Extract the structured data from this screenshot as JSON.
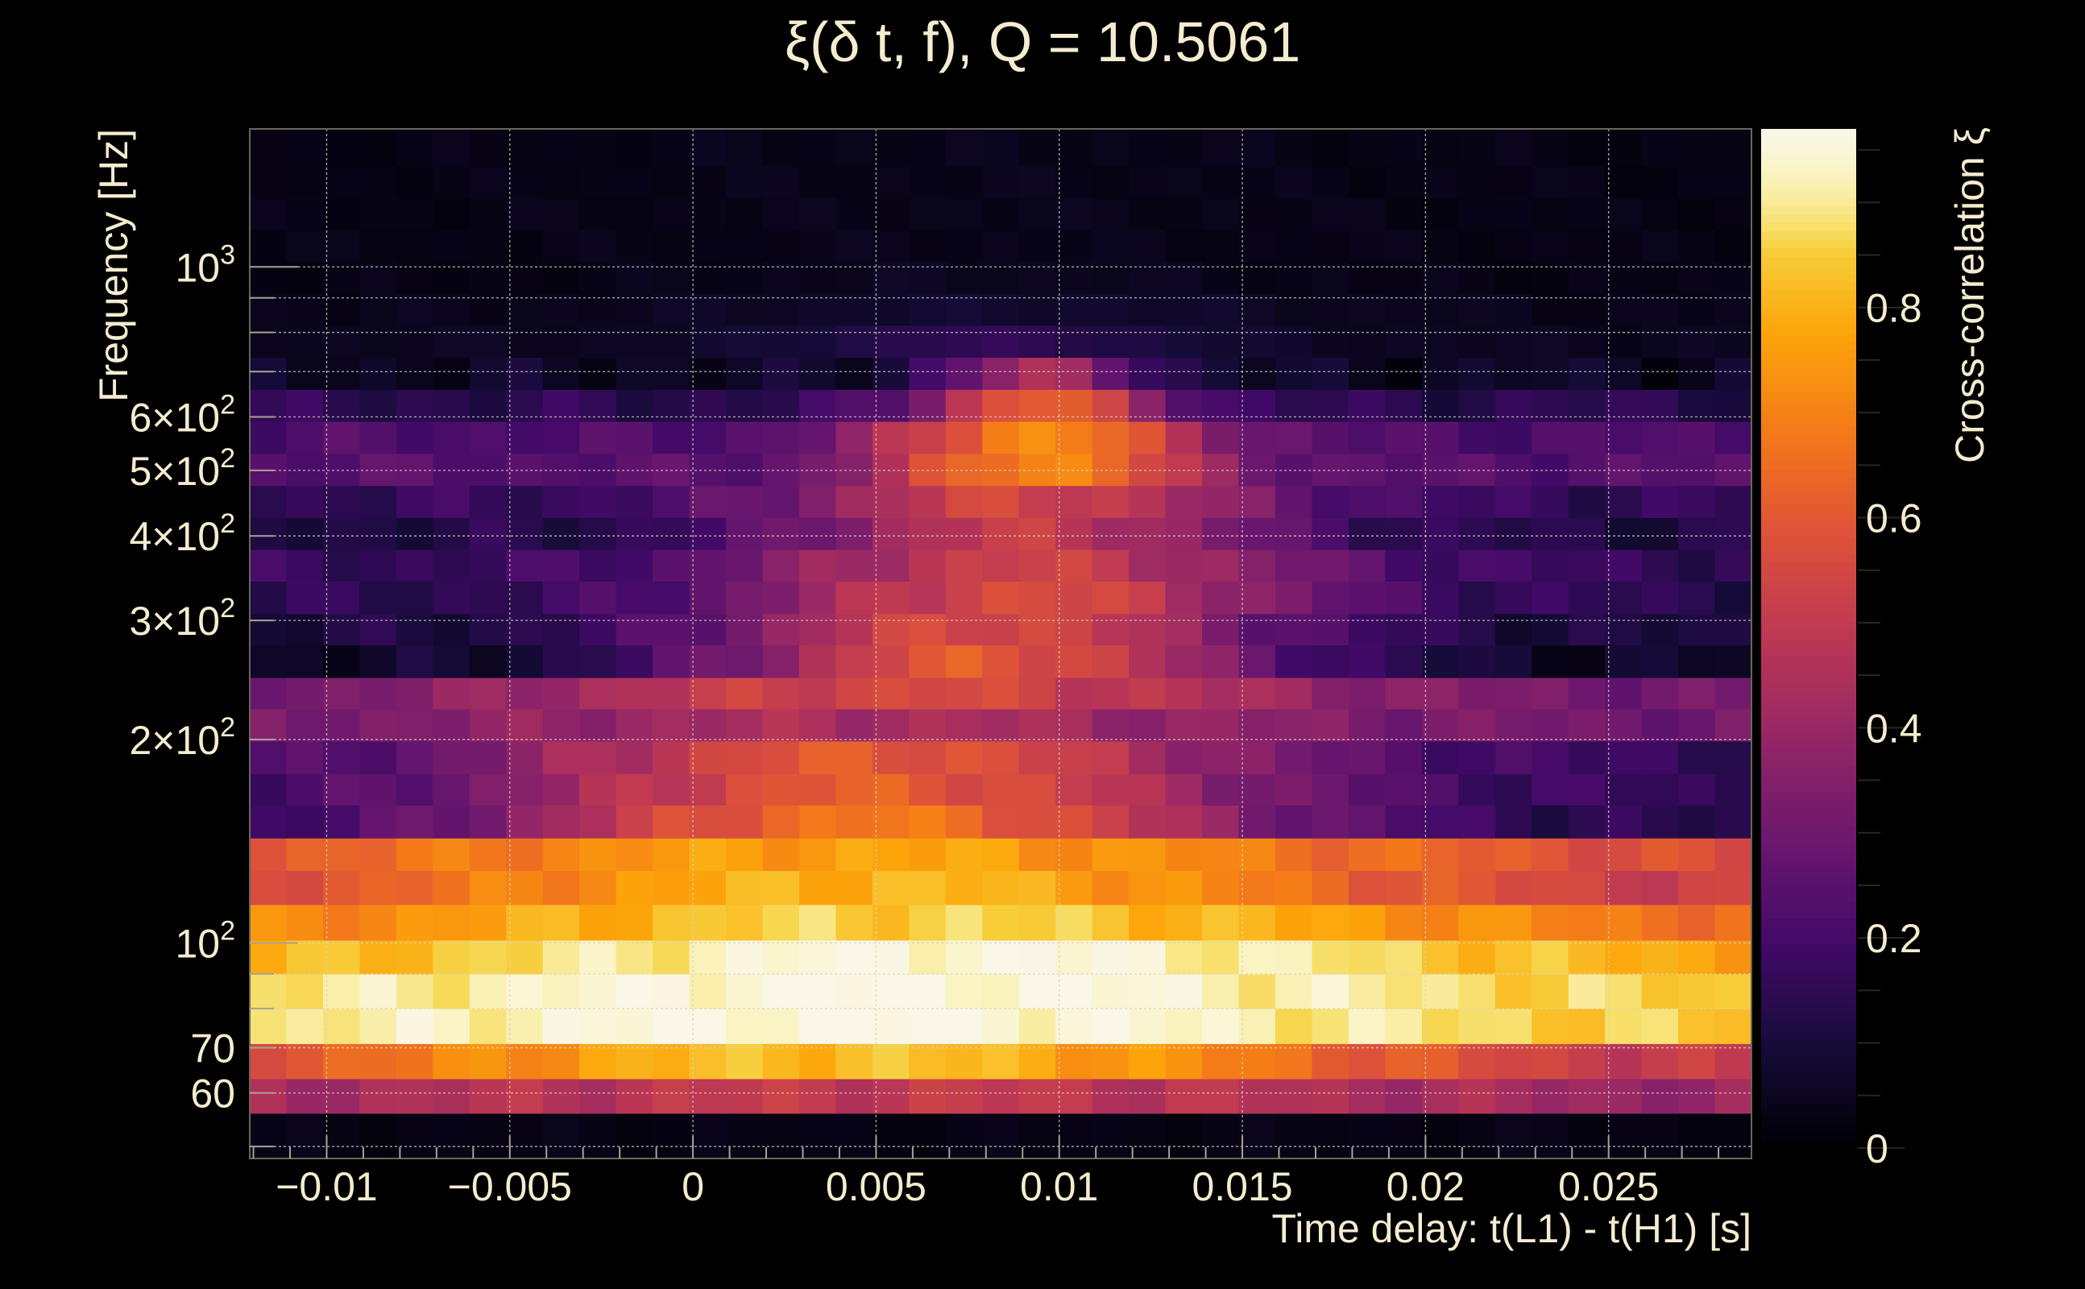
{
  "chart_data": {
    "type": "heatmap",
    "title": "ξ(δ t, f), Q = 10.5061",
    "xlabel": "Time delay: t(L1) - t(H1) [s]",
    "ylabel": "Frequency [Hz]",
    "colorbar_label": "Cross-correlation ξ",
    "xlim": [
      -0.0121,
      0.0289
    ],
    "ylim": [
      48,
      1600
    ],
    "y_scale": "log",
    "zlim": [
      0,
      0.97
    ],
    "grid": true,
    "colormap": "inferno",
    "x_ticks": [
      {
        "value": -0.01,
        "label": "−0.01"
      },
      {
        "value": -0.005,
        "label": "−0.005"
      },
      {
        "value": 0,
        "label": "0"
      },
      {
        "value": 0.005,
        "label": "0.005"
      },
      {
        "value": 0.01,
        "label": "0.01"
      },
      {
        "value": 0.015,
        "label": "0.015"
      },
      {
        "value": 0.02,
        "label": "0.02"
      },
      {
        "value": 0.025,
        "label": "0.025"
      }
    ],
    "y_ticks": [
      {
        "value": 60,
        "label": "60"
      },
      {
        "value": 70,
        "label": "70"
      },
      {
        "value": 100,
        "label": "10",
        "exp": "2"
      },
      {
        "value": 200,
        "label": "2×10",
        "exp": "2"
      },
      {
        "value": 300,
        "label": "3×10",
        "exp": "2"
      },
      {
        "value": 400,
        "label": "4×10",
        "exp": "2"
      },
      {
        "value": 500,
        "label": "5×10",
        "exp": "2"
      },
      {
        "value": 600,
        "label": "6×10",
        "exp": "2"
      },
      {
        "value": 1000,
        "label": "10",
        "exp": "3"
      }
    ],
    "colorbar_ticks": [
      {
        "value": 0,
        "label": "0"
      },
      {
        "value": 0.2,
        "label": "0.2"
      },
      {
        "value": 0.4,
        "label": "0.4"
      },
      {
        "value": 0.6,
        "label": "0.6"
      },
      {
        "value": 0.8,
        "label": "0.8"
      }
    ],
    "time_bins": 41,
    "frequency_rows": [
      {
        "f_low": 48,
        "f_high": 56,
        "base": 0.03,
        "amp": 0.0,
        "center": 0.006,
        "width": 0.03
      },
      {
        "f_low": 56,
        "f_high": 63,
        "base": 0.35,
        "amp": 0.15,
        "center": 0.005,
        "width": 0.02
      },
      {
        "f_low": 63,
        "f_high": 71,
        "base": 0.45,
        "amp": 0.38,
        "center": 0.004,
        "width": 0.016
      },
      {
        "f_low": 71,
        "f_high": 80,
        "base": 0.81,
        "amp": 0.16,
        "center": 0.004,
        "width": 0.018
      },
      {
        "f_low": 80,
        "f_high": 90,
        "base": 0.82,
        "amp": 0.15,
        "center": 0.005,
        "width": 0.017
      },
      {
        "f_low": 90,
        "f_high": 101,
        "base": 0.74,
        "amp": 0.22,
        "center": 0.007,
        "width": 0.016
      },
      {
        "f_low": 101,
        "f_high": 114,
        "base": 0.63,
        "amp": 0.23,
        "center": 0.006,
        "width": 0.016
      },
      {
        "f_low": 114,
        "f_high": 128,
        "base": 0.48,
        "amp": 0.33,
        "center": 0.005,
        "width": 0.015
      },
      {
        "f_low": 128,
        "f_high": 143,
        "base": 0.53,
        "amp": 0.24,
        "center": 0.005,
        "width": 0.016
      },
      {
        "f_low": 143,
        "f_high": 160,
        "base": 0.12,
        "amp": 0.55,
        "center": 0.005,
        "width": 0.011
      },
      {
        "f_low": 160,
        "f_high": 178,
        "base": 0.15,
        "amp": 0.46,
        "center": 0.005,
        "width": 0.011
      },
      {
        "f_low": 178,
        "f_high": 199,
        "base": 0.16,
        "amp": 0.44,
        "center": 0.005,
        "width": 0.011
      },
      {
        "f_low": 199,
        "f_high": 222,
        "base": 0.3,
        "amp": 0.14,
        "center": 0.005,
        "width": 0.012
      },
      {
        "f_low": 222,
        "f_high": 247,
        "base": 0.3,
        "amp": 0.25,
        "center": 0.006,
        "width": 0.011
      },
      {
        "f_low": 247,
        "f_high": 276,
        "base": 0.06,
        "amp": 0.54,
        "center": 0.008,
        "width": 0.008
      },
      {
        "f_low": 276,
        "f_high": 307,
        "base": 0.1,
        "amp": 0.46,
        "center": 0.008,
        "width": 0.008
      },
      {
        "f_low": 307,
        "f_high": 343,
        "base": 0.14,
        "amp": 0.42,
        "center": 0.009,
        "width": 0.008
      },
      {
        "f_low": 343,
        "f_high": 382,
        "base": 0.16,
        "amp": 0.36,
        "center": 0.009,
        "width": 0.008
      },
      {
        "f_low": 382,
        "f_high": 426,
        "base": 0.12,
        "amp": 0.38,
        "center": 0.009,
        "width": 0.007
      },
      {
        "f_low": 426,
        "f_high": 475,
        "base": 0.16,
        "amp": 0.38,
        "center": 0.009,
        "width": 0.007
      },
      {
        "f_low": 475,
        "f_high": 530,
        "base": 0.24,
        "amp": 0.48,
        "center": 0.0095,
        "width": 0.0045
      },
      {
        "f_low": 530,
        "f_high": 591,
        "base": 0.22,
        "amp": 0.5,
        "center": 0.0095,
        "width": 0.0045
      },
      {
        "f_low": 591,
        "f_high": 659,
        "base": 0.14,
        "amp": 0.48,
        "center": 0.0095,
        "width": 0.0035
      },
      {
        "f_low": 659,
        "f_high": 735,
        "base": 0.06,
        "amp": 0.36,
        "center": 0.0095,
        "width": 0.003
      },
      {
        "f_low": 735,
        "f_high": 820,
        "base": 0.05,
        "amp": 0.1,
        "center": 0.008,
        "width": 0.006
      },
      {
        "f_low": 820,
        "f_high": 914,
        "base": 0.04,
        "amp": 0.04,
        "center": 0.008,
        "width": 0.008
      },
      {
        "f_low": 914,
        "f_high": 1020,
        "base": 0.03,
        "amp": 0.02,
        "center": 0.008,
        "width": 0.008
      },
      {
        "f_low": 1020,
        "f_high": 1137,
        "base": 0.03,
        "amp": 0.01,
        "center": 0.008,
        "width": 0.01
      },
      {
        "f_low": 1137,
        "f_high": 1268,
        "base": 0.03,
        "amp": 0.01,
        "center": 0.008,
        "width": 0.01
      },
      {
        "f_low": 1268,
        "f_high": 1414,
        "base": 0.03,
        "amp": 0.01,
        "center": 0.008,
        "width": 0.01
      },
      {
        "f_low": 1414,
        "f_high": 1600,
        "base": 0.03,
        "amp": 0.01,
        "center": 0.008,
        "width": 0.01
      }
    ]
  }
}
